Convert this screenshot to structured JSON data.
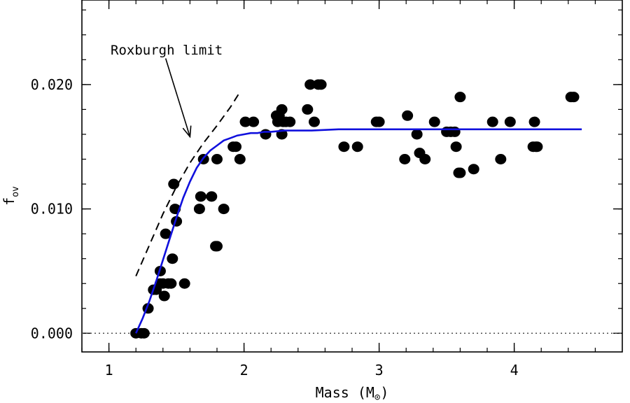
{
  "chart_data": {
    "type": "scatter",
    "xlabel": "Mass (M",
    "xlabel_symbol": "⊙",
    "xlabel_close": ")",
    "ylabel": "f",
    "ylabel_sub": "ov",
    "xlim": [
      0.8,
      4.8
    ],
    "ylim": [
      -0.0015,
      0.0268
    ],
    "x_ticks": [
      1,
      2,
      3,
      4
    ],
    "x_tick_labels": [
      "1",
      "2",
      "3",
      "4"
    ],
    "y_ticks": [
      0.0,
      0.01,
      0.02
    ],
    "y_tick_labels": [
      "0.000",
      "0.010",
      "0.020"
    ],
    "x_minor_step": 0.2,
    "y_minor_step": 0.002,
    "grid": false,
    "annotation": {
      "text": "Roxburgh limit",
      "arrow_from": [
        1.42,
        0.0221
      ],
      "arrow_to": [
        1.6,
        0.0158
      ]
    },
    "zero_line": {
      "y": 0.0,
      "style": "dotted"
    },
    "colors": {
      "fit": "#1010dd",
      "points": "#000000",
      "limit": "#000000"
    },
    "series": [
      {
        "kind": "points",
        "x": [
          1.2,
          1.24,
          1.26,
          1.29,
          1.33,
          1.35,
          1.38,
          1.38,
          1.4,
          1.41,
          1.42,
          1.44,
          1.46,
          1.47,
          1.48,
          1.49,
          1.5,
          1.56,
          1.67,
          1.68,
          1.7,
          1.76,
          1.79,
          1.8,
          1.8,
          1.85,
          1.92,
          1.94,
          1.97,
          2.01,
          2.07,
          2.16,
          2.24,
          2.25,
          2.26,
          2.28,
          2.28,
          2.29,
          2.31,
          2.34,
          2.47,
          2.49,
          2.52,
          2.55,
          2.57,
          2.74,
          2.84,
          2.98,
          3.0,
          3.19,
          3.21,
          3.28,
          3.3,
          3.34,
          3.41,
          3.5,
          3.53,
          3.56,
          3.57,
          3.59,
          3.6,
          3.6,
          3.7,
          3.84,
          3.9,
          3.97,
          4.14,
          4.15,
          4.16,
          4.17,
          4.42,
          4.44
        ],
        "y": [
          0.0,
          0.0,
          0.0,
          0.002,
          0.0035,
          0.0035,
          0.004,
          0.005,
          0.004,
          0.003,
          0.008,
          0.004,
          0.004,
          0.006,
          0.012,
          0.01,
          0.009,
          0.004,
          0.01,
          0.011,
          0.014,
          0.011,
          0.007,
          0.007,
          0.014,
          0.01,
          0.015,
          0.015,
          0.014,
          0.017,
          0.017,
          0.016,
          0.0175,
          0.017,
          0.0175,
          0.018,
          0.016,
          0.017,
          0.017,
          0.017,
          0.018,
          0.02,
          0.017,
          0.02,
          0.02,
          0.015,
          0.015,
          0.017,
          0.017,
          0.014,
          0.0175,
          0.016,
          0.0145,
          0.014,
          0.017,
          0.0162,
          0.0162,
          0.0162,
          0.015,
          0.0129,
          0.019,
          0.0129,
          0.0132,
          0.017,
          0.014,
          0.017,
          0.015,
          0.017,
          0.015,
          0.015,
          0.019,
          0.019
        ]
      },
      {
        "kind": "fit-curve",
        "x": [
          1.2,
          1.25,
          1.3,
          1.35,
          1.4,
          1.45,
          1.5,
          1.55,
          1.6,
          1.65,
          1.7,
          1.75,
          1.8,
          1.85,
          1.9,
          1.95,
          2.0,
          2.05,
          2.1,
          2.15,
          2.2,
          2.3,
          2.4,
          2.5,
          2.7,
          3.0,
          3.5,
          4.0,
          4.5
        ],
        "y": [
          0.0,
          0.0012,
          0.0026,
          0.0042,
          0.0059,
          0.0076,
          0.0093,
          0.0109,
          0.0122,
          0.0133,
          0.0141,
          0.0147,
          0.0151,
          0.0155,
          0.0157,
          0.0159,
          0.016,
          0.0161,
          0.0161,
          0.0162,
          0.0162,
          0.0163,
          0.0163,
          0.0163,
          0.0164,
          0.0164,
          0.0164,
          0.0164,
          0.0164
        ]
      },
      {
        "kind": "limit-curve",
        "x": [
          1.2,
          1.3,
          1.4,
          1.5,
          1.6,
          1.7,
          1.8,
          1.9,
          1.97
        ],
        "y": [
          0.0046,
          0.0071,
          0.0096,
          0.0118,
          0.0137,
          0.0153,
          0.0167,
          0.0182,
          0.0194
        ]
      }
    ]
  }
}
